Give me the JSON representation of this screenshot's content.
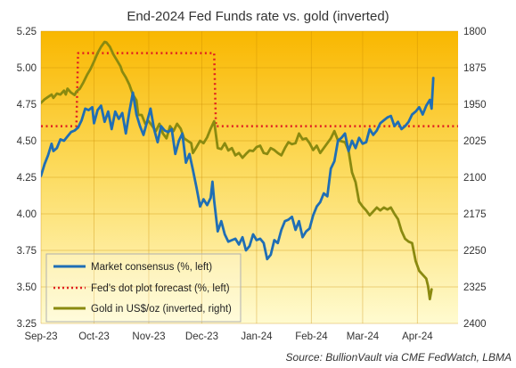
{
  "chart_data": {
    "type": "line",
    "title": "End-2024 Fed Funds rate vs. gold (inverted)",
    "source": "Source: BullionVault via CME FedWatch, LBMA",
    "x_ticks": [
      "Sep-23",
      "Oct-23",
      "Nov-23",
      "Dec-23",
      "Jan-24",
      "Feb-24",
      "Mar-24",
      "Apr-24"
    ],
    "x_tick_days": [
      0,
      30,
      61,
      91,
      122,
      153,
      182,
      213
    ],
    "x_range_days": [
      0,
      236
    ],
    "left_axis": {
      "ticks": [
        "5.25",
        "5.00",
        "4.75",
        "4.50",
        "4.25",
        "4.00",
        "3.75",
        "3.50",
        "3.25"
      ],
      "min": 3.25,
      "max": 5.25
    },
    "right_axis": {
      "ticks": [
        "1800",
        "1875",
        "1950",
        "2025",
        "2100",
        "2175",
        "2250",
        "2325",
        "2400"
      ],
      "min": 1800,
      "max": 2400,
      "inverted": true
    },
    "grid": true,
    "legend_position": "bottom-left",
    "series": [
      {
        "name": "Market consensus (%, left)",
        "axis": "left",
        "color": "#1f6eb5",
        "style": "solid",
        "points": [
          [
            0,
            4.26
          ],
          [
            2,
            4.34
          ],
          [
            4,
            4.4
          ],
          [
            6,
            4.48
          ],
          [
            7,
            4.43
          ],
          [
            9,
            4.45
          ],
          [
            11,
            4.51
          ],
          [
            13,
            4.5
          ],
          [
            15,
            4.53
          ],
          [
            17,
            4.56
          ],
          [
            19,
            4.57
          ],
          [
            21,
            4.59
          ],
          [
            23,
            4.64
          ],
          [
            25,
            4.72
          ],
          [
            27,
            4.71
          ],
          [
            29,
            4.73
          ],
          [
            30,
            4.62
          ],
          [
            32,
            4.71
          ],
          [
            34,
            4.74
          ],
          [
            36,
            4.63
          ],
          [
            38,
            4.7
          ],
          [
            40,
            4.58
          ],
          [
            42,
            4.7
          ],
          [
            44,
            4.65
          ],
          [
            46,
            4.69
          ],
          [
            48,
            4.55
          ],
          [
            50,
            4.7
          ],
          [
            52,
            4.83
          ],
          [
            54,
            4.68
          ],
          [
            56,
            4.6
          ],
          [
            58,
            4.54
          ],
          [
            60,
            4.63
          ],
          [
            62,
            4.72
          ],
          [
            64,
            4.58
          ],
          [
            66,
            4.49
          ],
          [
            68,
            4.6
          ],
          [
            70,
            4.57
          ],
          [
            72,
            4.56
          ],
          [
            74,
            4.58
          ],
          [
            76,
            4.41
          ],
          [
            78,
            4.5
          ],
          [
            80,
            4.55
          ],
          [
            82,
            4.35
          ],
          [
            84,
            4.41
          ],
          [
            86,
            4.3
          ],
          [
            88,
            4.18
          ],
          [
            90,
            4.05
          ],
          [
            92,
            4.1
          ],
          [
            94,
            4.06
          ],
          [
            96,
            4.11
          ],
          [
            97,
            4.22
          ],
          [
            98,
            4.09
          ],
          [
            100,
            3.88
          ],
          [
            102,
            3.95
          ],
          [
            104,
            3.86
          ],
          [
            106,
            3.81
          ],
          [
            108,
            3.82
          ],
          [
            110,
            3.83
          ],
          [
            112,
            3.79
          ],
          [
            114,
            3.84
          ],
          [
            116,
            3.75
          ],
          [
            118,
            3.78
          ],
          [
            120,
            3.86
          ],
          [
            122,
            3.82
          ],
          [
            124,
            3.83
          ],
          [
            126,
            3.8
          ],
          [
            128,
            3.69
          ],
          [
            130,
            3.72
          ],
          [
            132,
            3.82
          ],
          [
            134,
            3.8
          ],
          [
            136,
            3.89
          ],
          [
            138,
            3.95
          ],
          [
            140,
            3.96
          ],
          [
            142,
            3.98
          ],
          [
            144,
            3.89
          ],
          [
            146,
            3.95
          ],
          [
            148,
            3.84
          ],
          [
            150,
            3.88
          ],
          [
            152,
            3.9
          ],
          [
            154,
            3.99
          ],
          [
            156,
            4.05
          ],
          [
            158,
            4.08
          ],
          [
            160,
            4.14
          ],
          [
            162,
            4.12
          ],
          [
            164,
            4.31
          ],
          [
            166,
            4.36
          ],
          [
            168,
            4.5
          ],
          [
            170,
            4.52
          ],
          [
            172,
            4.55
          ],
          [
            174,
            4.43
          ],
          [
            176,
            4.5
          ],
          [
            178,
            4.45
          ],
          [
            180,
            4.52
          ],
          [
            182,
            4.48
          ],
          [
            184,
            4.49
          ],
          [
            186,
            4.58
          ],
          [
            188,
            4.54
          ],
          [
            190,
            4.57
          ],
          [
            192,
            4.62
          ],
          [
            194,
            4.64
          ],
          [
            196,
            4.66
          ],
          [
            198,
            4.67
          ],
          [
            200,
            4.6
          ],
          [
            202,
            4.63
          ],
          [
            204,
            4.58
          ],
          [
            206,
            4.6
          ],
          [
            208,
            4.63
          ],
          [
            210,
            4.68
          ],
          [
            212,
            4.7
          ],
          [
            214,
            4.73
          ],
          [
            216,
            4.68
          ],
          [
            218,
            4.74
          ],
          [
            220,
            4.78
          ],
          [
            221,
            4.72
          ],
          [
            222,
            4.93
          ]
        ]
      },
      {
        "name": "Fed's dot plot forecast (%, left)",
        "axis": "left",
        "color": "#e02020",
        "style": "dotted",
        "points": [
          [
            0,
            4.6
          ],
          [
            20,
            4.6
          ],
          [
            21,
            5.1
          ],
          [
            98,
            5.1
          ],
          [
            99,
            4.6
          ],
          [
            236,
            4.6
          ]
        ]
      },
      {
        "name": "Gold in US$/oz (inverted, right)",
        "axis": "right",
        "color": "#8a8a10",
        "style": "solid",
        "points": [
          [
            0,
            1947
          ],
          [
            2,
            1940
          ],
          [
            4,
            1935
          ],
          [
            6,
            1930
          ],
          [
            7,
            1937
          ],
          [
            9,
            1928
          ],
          [
            11,
            1930
          ],
          [
            13,
            1922
          ],
          [
            14,
            1930
          ],
          [
            15,
            1918
          ],
          [
            17,
            1926
          ],
          [
            19,
            1931
          ],
          [
            20,
            1924
          ],
          [
            22,
            1918
          ],
          [
            24,
            1905
          ],
          [
            26,
            1890
          ],
          [
            28,
            1878
          ],
          [
            30,
            1862
          ],
          [
            32,
            1845
          ],
          [
            34,
            1832
          ],
          [
            36,
            1822
          ],
          [
            37,
            1823
          ],
          [
            39,
            1832
          ],
          [
            41,
            1848
          ],
          [
            43,
            1860
          ],
          [
            45,
            1872
          ],
          [
            46,
            1883
          ],
          [
            48,
            1895
          ],
          [
            50,
            1910
          ],
          [
            52,
            1930
          ],
          [
            54,
            1942
          ],
          [
            55,
            1972
          ],
          [
            57,
            1972
          ],
          [
            59,
            1990
          ],
          [
            61,
            1985
          ],
          [
            63,
            1995
          ],
          [
            65,
            2005
          ],
          [
            67,
            1990
          ],
          [
            69,
            2010
          ],
          [
            71,
            2020
          ],
          [
            73,
            1995
          ],
          [
            75,
            2005
          ],
          [
            77,
            1990
          ],
          [
            79,
            2000
          ],
          [
            81,
            2020
          ],
          [
            83,
            2025
          ],
          [
            85,
            2030
          ],
          [
            86,
            2050
          ],
          [
            88,
            2038
          ],
          [
            90,
            2025
          ],
          [
            92,
            2030
          ],
          [
            94,
            2018
          ],
          [
            96,
            2000
          ],
          [
            98,
            1985
          ],
          [
            100,
            2040
          ],
          [
            102,
            2042
          ],
          [
            104,
            2030
          ],
          [
            106,
            2045
          ],
          [
            108,
            2040
          ],
          [
            110,
            2055
          ],
          [
            112,
            2050
          ],
          [
            114,
            2060
          ],
          [
            116,
            2052
          ],
          [
            118,
            2045
          ],
          [
            120,
            2046
          ],
          [
            122,
            2038
          ],
          [
            124,
            2035
          ],
          [
            126,
            2050
          ],
          [
            128,
            2052
          ],
          [
            130,
            2040
          ],
          [
            132,
            2044
          ],
          [
            134,
            2050
          ],
          [
            136,
            2055
          ],
          [
            138,
            2040
          ],
          [
            140,
            2028
          ],
          [
            142,
            2032
          ],
          [
            144,
            2030
          ],
          [
            146,
            2010
          ],
          [
            148,
            2022
          ],
          [
            150,
            2020
          ],
          [
            152,
            2030
          ],
          [
            154,
            2044
          ],
          [
            156,
            2035
          ],
          [
            158,
            2050
          ],
          [
            160,
            2040
          ],
          [
            162,
            2030
          ],
          [
            164,
            2020
          ],
          [
            166,
            2005
          ],
          [
            168,
            2024
          ],
          [
            170,
            2026
          ],
          [
            172,
            2028
          ],
          [
            174,
            2045
          ],
          [
            176,
            2090
          ],
          [
            178,
            2110
          ],
          [
            180,
            2150
          ],
          [
            182,
            2160
          ],
          [
            184,
            2168
          ],
          [
            186,
            2178
          ],
          [
            188,
            2170
          ],
          [
            190,
            2162
          ],
          [
            192,
            2168
          ],
          [
            194,
            2162
          ],
          [
            196,
            2166
          ],
          [
            198,
            2162
          ],
          [
            200,
            2175
          ],
          [
            202,
            2186
          ],
          [
            204,
            2210
          ],
          [
            206,
            2226
          ],
          [
            208,
            2232
          ],
          [
            210,
            2235
          ],
          [
            212,
            2272
          ],
          [
            214,
            2292
          ],
          [
            216,
            2300
          ],
          [
            218,
            2308
          ],
          [
            219,
            2323
          ],
          [
            220,
            2350
          ],
          [
            221,
            2330
          ]
        ]
      }
    ]
  }
}
